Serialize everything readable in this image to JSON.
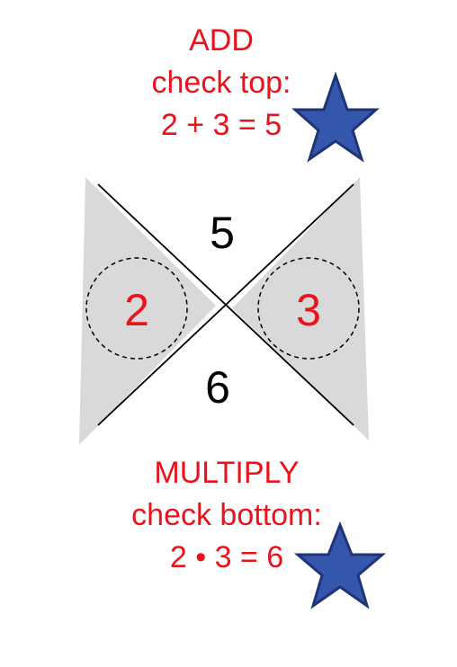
{
  "top": {
    "lines": [
      "ADD",
      "check top:",
      "2 + 3 = 5"
    ]
  },
  "bottom": {
    "lines": [
      "MULTIPLY",
      "check bottom:",
      "2 • 3 = 6"
    ]
  },
  "x_box": {
    "top_value": "5",
    "bottom_value": "6",
    "left_value": "2",
    "right_value": "3"
  },
  "colors": {
    "text_red": "#e8131b",
    "star_fill": "#3556ad",
    "star_stroke": "#1f3477",
    "wedge_fill": "#d9d9d9"
  },
  "icons": [
    "star-icon",
    "star-icon"
  ]
}
